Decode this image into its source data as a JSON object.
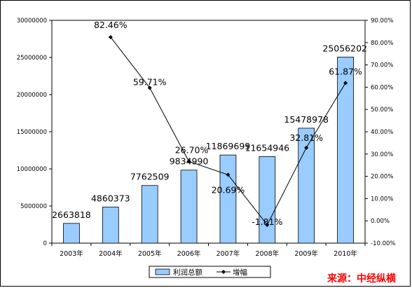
{
  "chart_data": {
    "type": "bar",
    "categories": [
      "2003年",
      "2004年",
      "2005年",
      "2006年",
      "2007年",
      "2008年",
      "2009年",
      "2010年"
    ],
    "series": [
      {
        "name": "利润总额",
        "type": "bar",
        "axis": "left",
        "values": [
          2663818,
          4860373,
          7762509,
          9834990,
          11869699,
          11654946,
          15478978,
          25056202
        ],
        "labels": [
          "2663818",
          "4860373",
          "7762509",
          "9834990",
          "11869699",
          "11654946",
          "15478978",
          "25056202"
        ],
        "color": "#99ccff"
      },
      {
        "name": "增幅",
        "type": "line",
        "axis": "right",
        "values": [
          null,
          82.46,
          59.71,
          26.7,
          20.69,
          -1.81,
          32.81,
          61.87
        ],
        "labels": [
          "",
          "82.46%",
          "59.71%",
          "26.70%",
          "20.69%",
          "-1.81%",
          "32.81%",
          "61.87%"
        ],
        "color": "#000000"
      }
    ],
    "ylim_left": [
      0,
      30000000
    ],
    "yticks_left": [
      "0",
      "5000000",
      "10000000",
      "15000000",
      "20000000",
      "25000000",
      "30000000"
    ],
    "ylim_right": [
      -10,
      90
    ],
    "yticks_right": [
      "-10.00%",
      "0.00%",
      "10.00%",
      "20.00%",
      "30.00%",
      "40.00%",
      "50.00%",
      "60.00%",
      "70.00%",
      "80.00%",
      "90.00%"
    ],
    "legend": {
      "position": "bottom",
      "items": [
        "利润总额",
        "增幅"
      ]
    },
    "grid": false
  },
  "source_text": "来源：中经纵横"
}
